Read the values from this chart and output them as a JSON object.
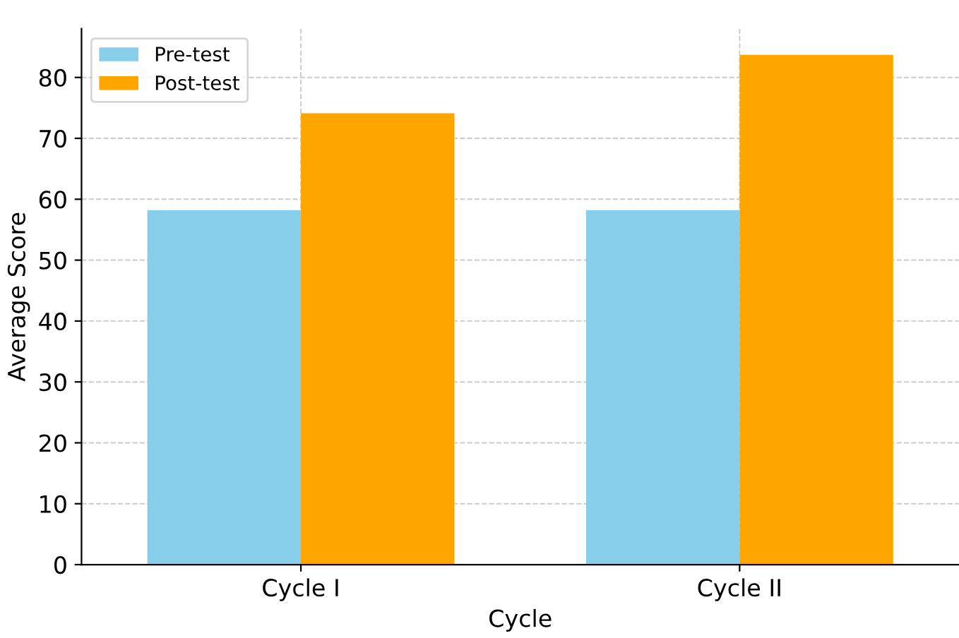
{
  "chart_data": {
    "type": "bar",
    "categories": [
      "Cycle I",
      "Cycle II"
    ],
    "series": [
      {
        "name": "Pre-test",
        "color": "#87ceeb",
        "values": [
          58.2,
          58.2
        ]
      },
      {
        "name": "Post-test",
        "color": "#ffa500",
        "values": [
          74.1,
          83.7
        ]
      }
    ],
    "xlabel": "Cycle",
    "ylabel": "Average Score",
    "ylim": [
      0,
      88
    ],
    "yticks": [
      0,
      10,
      20,
      30,
      40,
      50,
      60,
      70,
      80
    ],
    "grid": true,
    "legend": "top left"
  }
}
